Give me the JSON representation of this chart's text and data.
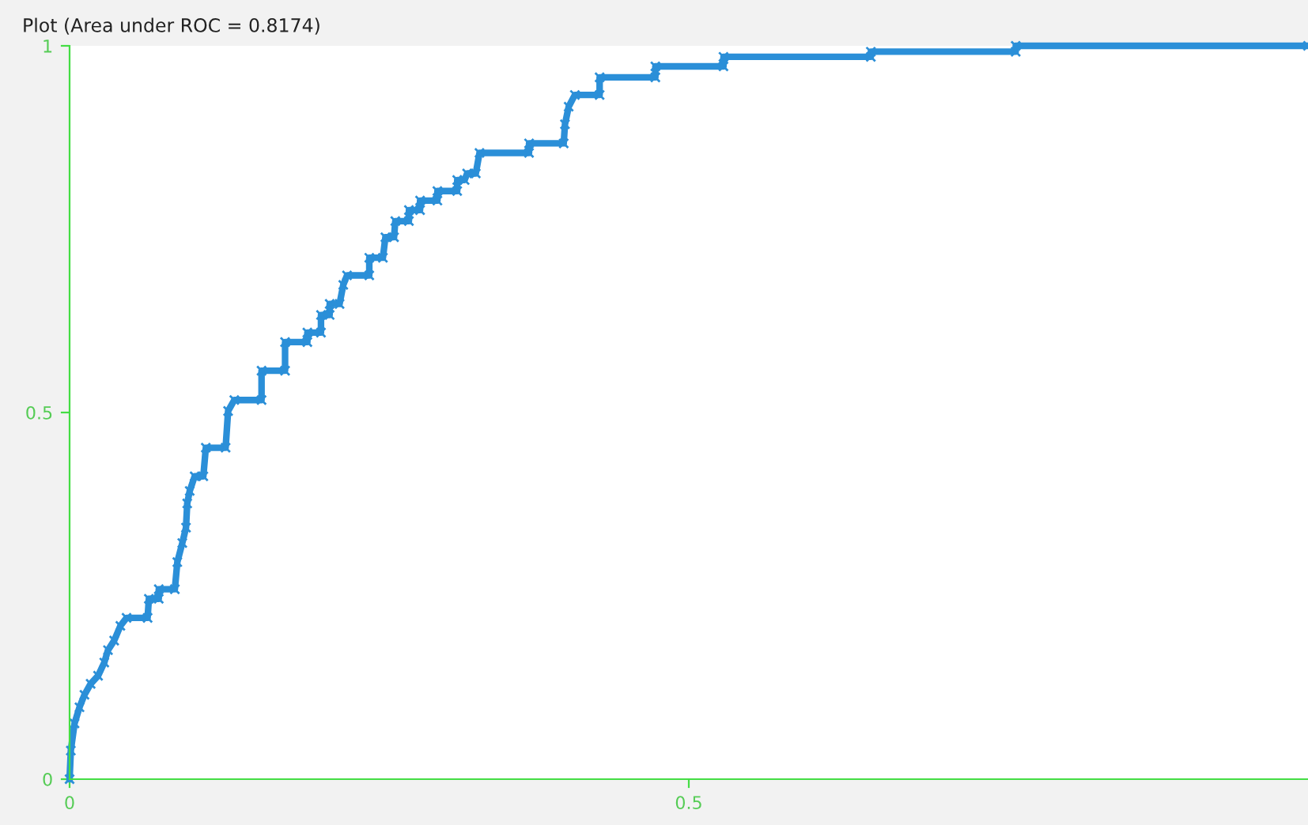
{
  "chart_data": {
    "type": "line",
    "title": "Plot (Area under ROC = 0.8174)",
    "xlim": [
      0,
      1
    ],
    "ylim": [
      0,
      1
    ],
    "xticks": [
      0,
      0.5
    ],
    "yticks": [
      0,
      0.5,
      1
    ],
    "grid": false,
    "marker": "cross",
    "line_style": "solid",
    "x": [
      0,
      0.001,
      0.004,
      0.008,
      0.012,
      0.017,
      0.023,
      0.028,
      0.031,
      0.036,
      0.041,
      0.046,
      0.063,
      0.064,
      0.072,
      0.072,
      0.085,
      0.087,
      0.091,
      0.094,
      0.095,
      0.097,
      0.101,
      0.108,
      0.11,
      0.126,
      0.128,
      0.133,
      0.155,
      0.155,
      0.174,
      0.174,
      0.192,
      0.192,
      0.203,
      0.203,
      0.21,
      0.21,
      0.218,
      0.221,
      0.224,
      0.242,
      0.242,
      0.253,
      0.255,
      0.262,
      0.263,
      0.274,
      0.274,
      0.283,
      0.283,
      0.297,
      0.297,
      0.313,
      0.313,
      0.319,
      0.321,
      0.328,
      0.331,
      0.371,
      0.371,
      0.399,
      0.4,
      0.403,
      0.408,
      0.428,
      0.428,
      0.473,
      0.473,
      0.528,
      0.528,
      0.647,
      0.647,
      0.764,
      0.764,
      1
    ],
    "series": [
      {
        "color": "#2b8fd8",
        "values": [
          0,
          0.039,
          0.076,
          0.098,
          0.115,
          0.13,
          0.141,
          0.159,
          0.176,
          0.189,
          0.209,
          0.22,
          0.22,
          0.246,
          0.246,
          0.259,
          0.259,
          0.296,
          0.322,
          0.343,
          0.376,
          0.393,
          0.413,
          0.413,
          0.452,
          0.452,
          0.502,
          0.517,
          0.517,
          0.557,
          0.557,
          0.596,
          0.596,
          0.609,
          0.609,
          0.633,
          0.633,
          0.648,
          0.648,
          0.674,
          0.687,
          0.687,
          0.711,
          0.711,
          0.739,
          0.739,
          0.761,
          0.761,
          0.776,
          0.776,
          0.789,
          0.789,
          0.802,
          0.802,
          0.817,
          0.817,
          0.826,
          0.826,
          0.854,
          0.854,
          0.867,
          0.867,
          0.893,
          0.917,
          0.933,
          0.933,
          0.957,
          0.957,
          0.972,
          0.972,
          0.985,
          0.985,
          0.992,
          0.992,
          1,
          1
        ]
      }
    ]
  }
}
